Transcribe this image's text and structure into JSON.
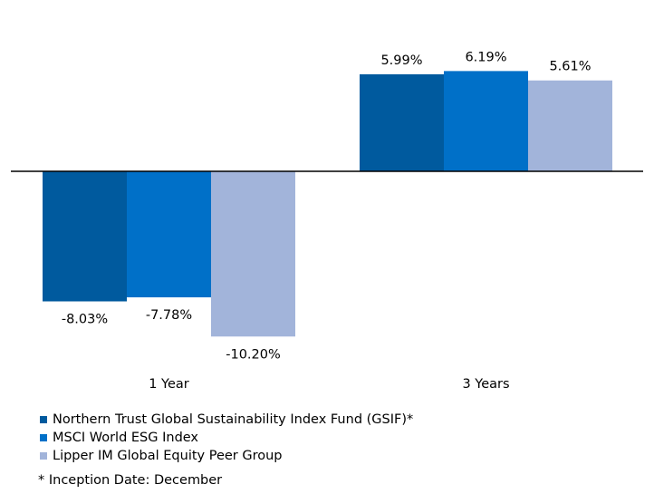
{
  "chart_data": {
    "type": "bar",
    "categories": [
      "1 Year",
      "3 Years"
    ],
    "series": [
      {
        "name": "Northern Trust Global Sustainability Index Fund (GSIF)*",
        "values": [
          -8.03,
          5.99
        ],
        "labels": [
          "-8.03%",
          "5.99%"
        ],
        "color": "#005A9E"
      },
      {
        "name": "MSCI World ESG  Index",
        "values": [
          -7.78,
          6.19
        ],
        "labels": [
          "-7.78%",
          "6.19%"
        ],
        "color": "#0070C8"
      },
      {
        "name": "Lipper IM Global Equity Peer Group",
        "values": [
          -10.2,
          5.61
        ],
        "labels": [
          "-10.20%",
          "5.61%"
        ],
        "color": "#A2B4DA"
      }
    ],
    "unit": "%",
    "gridlines": false,
    "legend_position": "bottom-left"
  },
  "footnote": "* Inception Date: December"
}
